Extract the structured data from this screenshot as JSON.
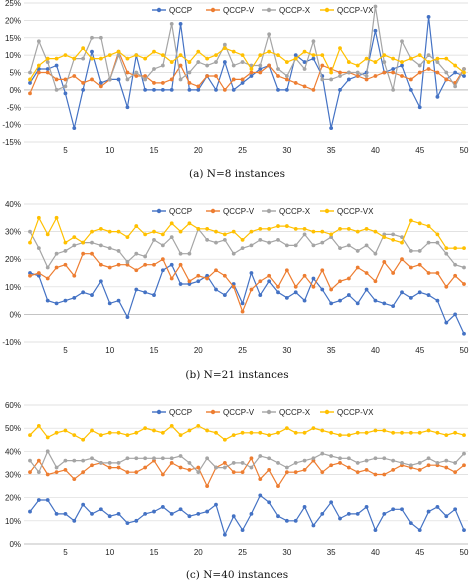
{
  "colors": {
    "QCCP": "#4472C4",
    "QCCP-V": "#ED7D31",
    "QCCP-X": "#A5A5A5",
    "QCCP-VX": "#FFC000",
    "grid": "#d9d9d9"
  },
  "chart_data": [
    {
      "type": "line",
      "caption": "(a) N=8 instances",
      "legend_position": "top",
      "grid": true,
      "x": [
        1,
        2,
        3,
        4,
        5,
        6,
        7,
        8,
        9,
        10,
        11,
        12,
        13,
        14,
        15,
        16,
        17,
        18,
        19,
        20,
        21,
        22,
        23,
        24,
        25,
        26,
        27,
        28,
        29,
        30,
        31,
        32,
        33,
        34,
        35,
        36,
        37,
        38,
        39,
        40,
        41,
        42,
        43,
        44,
        45,
        46,
        47,
        48,
        49,
        50
      ],
      "xticks": [
        5,
        10,
        15,
        20,
        25,
        30,
        35,
        40,
        45,
        50
      ],
      "ylim": [
        -15,
        25
      ],
      "yticks": [
        -15,
        -10,
        -5,
        0,
        5,
        10,
        15,
        20,
        25
      ],
      "ytick_labels": [
        "-15%",
        "-10%",
        "-5%",
        "0%",
        "5%",
        "10%",
        "15%",
        "20%",
        "25%"
      ],
      "series": [
        {
          "name": "QCCP",
          "values": [
            2,
            6,
            6,
            7,
            -1,
            -11,
            0,
            11,
            2,
            3,
            3,
            -5,
            10,
            0,
            0,
            0,
            0,
            19,
            0,
            0,
            4,
            0,
            8,
            0,
            2,
            4,
            6,
            7,
            0,
            0,
            10,
            8,
            9,
            4,
            -11,
            0,
            3,
            4,
            5,
            17,
            5,
            6,
            7,
            0,
            -5,
            21,
            -2,
            3,
            5,
            4
          ]
        },
        {
          "name": "QCCP-V",
          "values": [
            -1,
            5,
            5,
            3,
            3,
            4,
            2,
            3,
            1,
            3,
            11,
            5,
            4,
            4,
            2,
            2,
            3,
            7,
            2,
            1,
            4,
            4,
            0,
            3,
            3,
            5,
            5,
            7,
            4,
            3,
            2,
            1,
            0,
            7,
            6,
            5,
            5,
            4,
            3,
            4,
            5,
            5,
            4,
            3,
            5,
            6,
            5,
            3,
            2,
            6
          ]
        },
        {
          "name": "QCCP-X",
          "values": [
            5,
            14,
            8,
            0,
            1,
            9,
            9,
            15,
            15,
            3,
            10,
            3,
            5,
            3,
            6,
            7,
            19,
            3,
            5,
            8,
            7,
            8,
            13,
            7,
            8,
            7,
            7,
            16,
            6,
            4,
            9,
            6,
            14,
            3,
            3,
            4,
            5,
            5,
            4,
            24,
            8,
            0,
            14,
            9,
            7,
            10,
            8,
            5,
            1,
            6
          ]
        },
        {
          "name": "QCCP-VX",
          "values": [
            3,
            7,
            9,
            9,
            10,
            9,
            12,
            9,
            9,
            10,
            11,
            9,
            10,
            9,
            11,
            10,
            8,
            10,
            8,
            11,
            9,
            10,
            12,
            11,
            10,
            6,
            10,
            11,
            10,
            8,
            9,
            11,
            10,
            10,
            5,
            12,
            8,
            7,
            9,
            8,
            10,
            9,
            8,
            9,
            10,
            8,
            9,
            9,
            7,
            5
          ]
        }
      ]
    },
    {
      "type": "line",
      "caption": "(b) N=21 instances",
      "legend_position": "top",
      "grid": true,
      "x": [
        1,
        2,
        3,
        4,
        5,
        6,
        7,
        8,
        9,
        10,
        11,
        12,
        13,
        14,
        15,
        16,
        17,
        18,
        19,
        20,
        21,
        22,
        23,
        24,
        25,
        26,
        27,
        28,
        29,
        30,
        31,
        32,
        33,
        34,
        35,
        36,
        37,
        38,
        39,
        40,
        41,
        42,
        43,
        44,
        45,
        46,
        47,
        48,
        49,
        50
      ],
      "xticks": [
        5,
        10,
        15,
        20,
        25,
        30,
        35,
        40,
        45,
        50
      ],
      "ylim": [
        -10,
        40
      ],
      "yticks": [
        -10,
        0,
        10,
        20,
        30,
        40
      ],
      "ytick_labels": [
        "-10%",
        "0%",
        "10%",
        "20%",
        "30%",
        "40%"
      ],
      "series": [
        {
          "name": "QCCP",
          "values": [
            15,
            14,
            5,
            4,
            5,
            6,
            8,
            7,
            12,
            4,
            5,
            -1,
            9,
            8,
            7,
            16,
            18,
            11,
            11,
            12,
            14,
            9,
            7,
            11,
            4,
            15,
            7,
            12,
            8,
            6,
            8,
            5,
            13,
            9,
            4,
            5,
            7,
            4,
            9,
            5,
            4,
            3,
            8,
            6,
            8,
            7,
            5,
            -3,
            0,
            -7
          ]
        },
        {
          "name": "QCCP-V",
          "values": [
            14,
            15,
            13,
            17,
            18,
            14,
            22,
            22,
            18,
            17,
            18,
            18,
            16,
            18,
            18,
            20,
            13,
            18,
            12,
            14,
            13,
            16,
            14,
            10,
            1,
            9,
            12,
            14,
            10,
            16,
            10,
            14,
            10,
            16,
            9,
            12,
            13,
            17,
            15,
            12,
            19,
            15,
            20,
            17,
            18,
            15,
            15,
            10,
            14,
            11
          ]
        },
        {
          "name": "QCCP-X",
          "values": [
            30,
            24,
            17,
            22,
            23,
            25,
            26,
            26,
            25,
            24,
            23,
            19,
            22,
            21,
            27,
            25,
            28,
            22,
            22,
            31,
            27,
            26,
            27,
            22,
            24,
            25,
            27,
            26,
            27,
            25,
            25,
            29,
            25,
            26,
            28,
            24,
            25,
            23,
            25,
            22,
            29,
            29,
            28,
            23,
            23,
            26,
            26,
            22,
            18,
            17
          ]
        },
        {
          "name": "QCCP-VX",
          "values": [
            26,
            35,
            29,
            35,
            26,
            28,
            26,
            30,
            31,
            30,
            30,
            28,
            32,
            29,
            30,
            29,
            33,
            30,
            33,
            31,
            31,
            30,
            29,
            30,
            27,
            30,
            31,
            31,
            32,
            32,
            31,
            31,
            30,
            30,
            29,
            31,
            31,
            30,
            31,
            30,
            28,
            27,
            26,
            34,
            33,
            32,
            29,
            24,
            24,
            24
          ]
        }
      ]
    },
    {
      "type": "line",
      "caption": "(c) N=40 instances",
      "legend_position": "top",
      "grid": true,
      "x": [
        1,
        2,
        3,
        4,
        5,
        6,
        7,
        8,
        9,
        10,
        11,
        12,
        13,
        14,
        15,
        16,
        17,
        18,
        19,
        20,
        21,
        22,
        23,
        24,
        25,
        26,
        27,
        28,
        29,
        30,
        31,
        32,
        33,
        34,
        35,
        36,
        37,
        38,
        39,
        40,
        41,
        42,
        43,
        44,
        45,
        46,
        47,
        48,
        49,
        50
      ],
      "xticks": [
        5,
        10,
        15,
        20,
        25,
        30,
        35,
        40,
        45,
        50
      ],
      "ylim": [
        0,
        60
      ],
      "yticks": [
        0,
        10,
        20,
        30,
        40,
        50,
        60
      ],
      "ytick_labels": [
        "0%",
        "10%",
        "20%",
        "30%",
        "40%",
        "50%",
        "60%"
      ],
      "series": [
        {
          "name": "QCCP",
          "values": [
            14,
            19,
            19,
            13,
            13,
            10,
            17,
            13,
            15,
            12,
            13,
            9,
            10,
            13,
            14,
            16,
            13,
            15,
            12,
            13,
            14,
            17,
            4,
            12,
            6,
            13,
            21,
            18,
            12,
            10,
            10,
            16,
            8,
            13,
            18,
            11,
            13,
            13,
            16,
            6,
            13,
            15,
            15,
            9,
            6,
            14,
            16,
            12,
            15,
            6
          ]
        },
        {
          "name": "QCCP-V",
          "values": [
            31,
            36,
            30,
            31,
            32,
            28,
            31,
            34,
            35,
            33,
            33,
            31,
            31,
            33,
            36,
            30,
            35,
            33,
            32,
            33,
            25,
            33,
            35,
            31,
            31,
            37,
            28,
            32,
            25,
            31,
            31,
            32,
            36,
            31,
            34,
            35,
            33,
            31,
            32,
            30,
            30,
            32,
            34,
            33,
            32,
            34,
            34,
            33,
            31,
            34
          ]
        },
        {
          "name": "QCCP-X",
          "values": [
            36,
            31,
            40,
            33,
            36,
            36,
            36,
            37,
            35,
            35,
            35,
            37,
            37,
            37,
            37,
            37,
            37,
            38,
            35,
            31,
            37,
            33,
            33,
            35,
            35,
            33,
            38,
            37,
            35,
            33,
            35,
            36,
            37,
            39,
            38,
            37,
            37,
            35,
            36,
            37,
            37,
            36,
            35,
            34,
            35,
            37,
            35,
            36,
            35,
            39
          ]
        },
        {
          "name": "QCCP-VX",
          "values": [
            47,
            51,
            46,
            48,
            49,
            47,
            45,
            49,
            47,
            48,
            48,
            47,
            48,
            50,
            49,
            48,
            51,
            47,
            49,
            51,
            49,
            48,
            45,
            47,
            48,
            48,
            48,
            47,
            48,
            50,
            48,
            48,
            50,
            49,
            48,
            47,
            47,
            48,
            48,
            49,
            49,
            48,
            48,
            48,
            48,
            49,
            48,
            47,
            48,
            47
          ]
        }
      ]
    }
  ]
}
